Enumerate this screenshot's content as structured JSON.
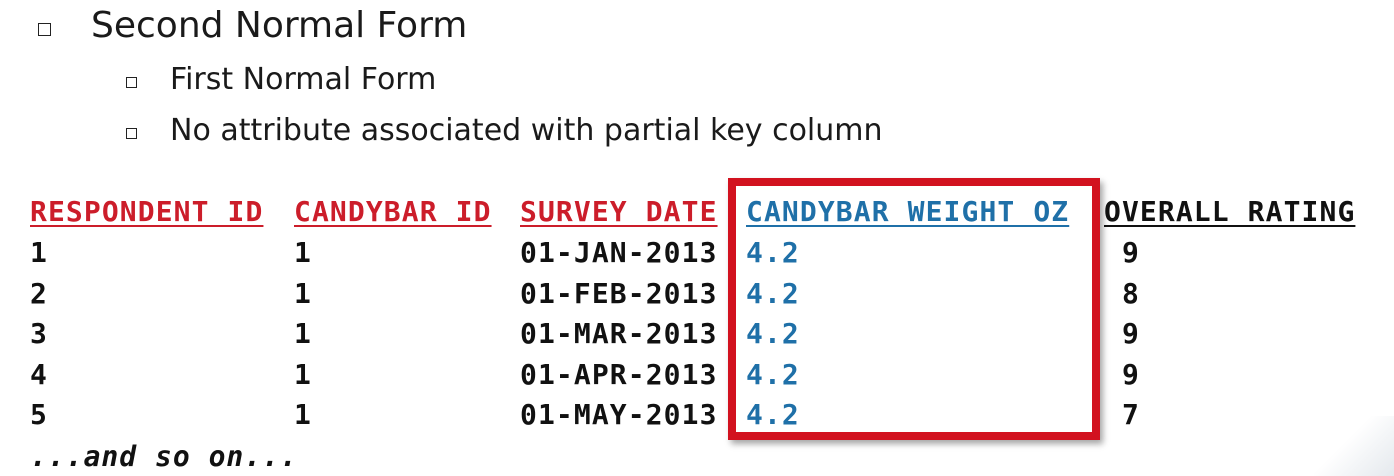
{
  "slide": {
    "title": "Second Normal Form",
    "subbullets": [
      "First Normal Form",
      "No attribute associated with partial key column"
    ]
  },
  "table": {
    "headers": [
      {
        "label": "RESPONDENT ID",
        "color": "#cc1d2a"
      },
      {
        "label": "CANDYBAR ID",
        "color": "#cc1d2a"
      },
      {
        "label": "SURVEY DATE",
        "color": "#cc1d2a"
      },
      {
        "label": "CANDYBAR WEIGHT OZ",
        "color": "#1f70a8"
      },
      {
        "label": "OVERALL RATING",
        "color": "#111111"
      }
    ],
    "rows": [
      [
        "1",
        "1",
        "01-JAN-2013",
        "4.2",
        "9"
      ],
      [
        "2",
        "1",
        "01-FEB-2013",
        "4.2",
        "8"
      ],
      [
        "3",
        "1",
        "01-MAR-2013",
        "4.2",
        "9"
      ],
      [
        "4",
        "1",
        "01-APR-2013",
        "4.2",
        "9"
      ],
      [
        "5",
        "1",
        "01-MAY-2013",
        "4.2",
        "7"
      ]
    ],
    "footer": "...and so on...",
    "highlight_column": "CANDYBAR WEIGHT OZ",
    "highlight_color": "#d2121f"
  }
}
